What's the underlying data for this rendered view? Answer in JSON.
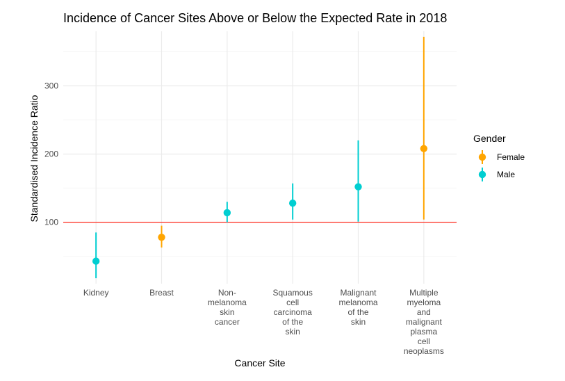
{
  "chart_data": {
    "type": "scatter",
    "title": "Incidence of Cancer Sites Above or Below the Expected Rate in 2018",
    "xlabel": "Cancer Site",
    "ylabel": "Standardised Incidence Ratio",
    "ylim": [
      10,
      380
    ],
    "yticks": [
      100,
      200,
      300
    ],
    "reference_line": {
      "y": 100,
      "color": "#ff3b30"
    },
    "grid": true,
    "legend": {
      "title": "Gender",
      "position": "right",
      "entries": [
        {
          "name": "Female",
          "color": "#ffa500"
        },
        {
          "name": "Male",
          "color": "#00ced1"
        }
      ]
    },
    "categories": [
      [
        "Kidney"
      ],
      [
        "Breast"
      ],
      [
        "Non-",
        "melanoma",
        "skin",
        "cancer"
      ],
      [
        "Squamous",
        "cell",
        "carcinoma",
        "of the",
        "skin"
      ],
      [
        "Malignant",
        "melanoma",
        "of the",
        "skin"
      ],
      [
        "Multiple",
        "myeloma",
        "and",
        "malignant",
        "plasma",
        "cell",
        "neoplasms"
      ]
    ],
    "points": [
      {
        "gender": "Male",
        "y": 43,
        "lower": 18,
        "upper": 85
      },
      {
        "gender": "Female",
        "y": 78,
        "lower": 63,
        "upper": 95
      },
      {
        "gender": "Male",
        "y": 114,
        "lower": 100,
        "upper": 130
      },
      {
        "gender": "Male",
        "y": 128,
        "lower": 104,
        "upper": 157
      },
      {
        "gender": "Male",
        "y": 152,
        "lower": 101,
        "upper": 220
      },
      {
        "gender": "Female",
        "y": 208,
        "lower": 104,
        "upper": 372
      }
    ]
  }
}
